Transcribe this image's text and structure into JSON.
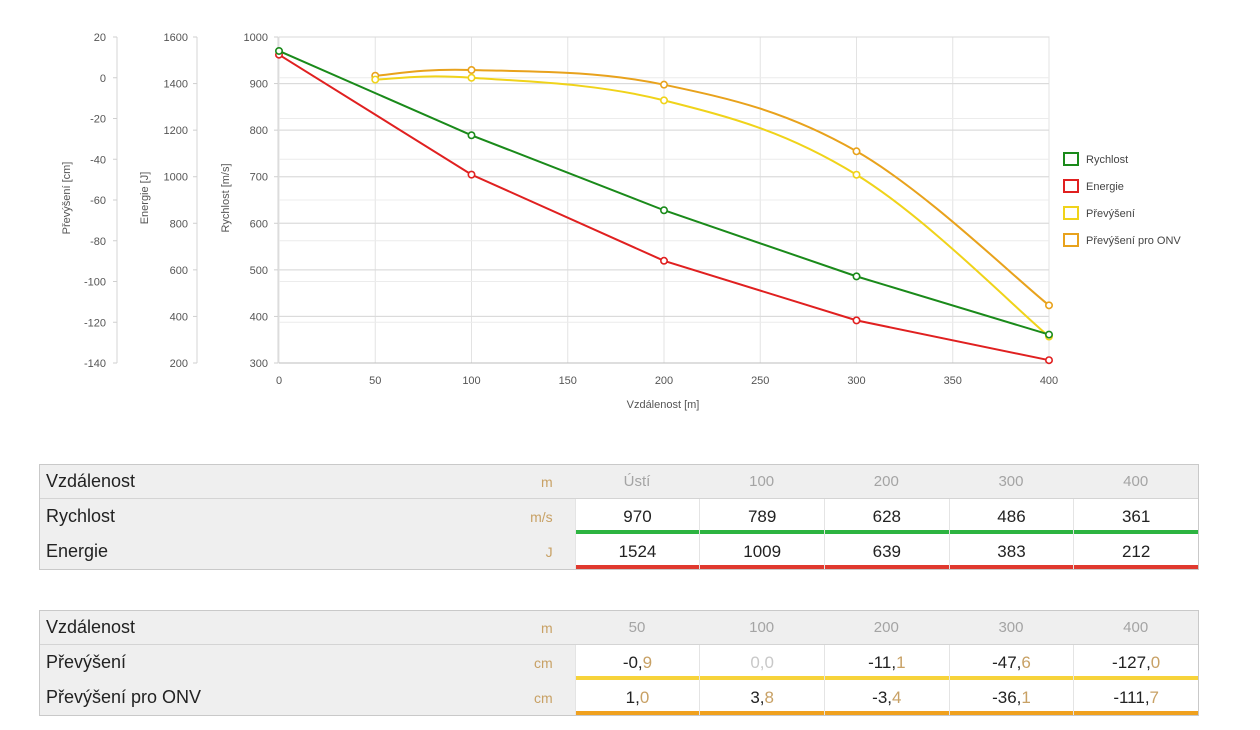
{
  "chart_data": {
    "type": "line",
    "xlabel": "Vzdálenost [m]",
    "xlim": [
      0,
      400
    ],
    "x_ticks": [
      0,
      50,
      100,
      150,
      200,
      250,
      300,
      350,
      400
    ],
    "grid": true,
    "legend_position": "right",
    "axes": [
      {
        "id": "elev",
        "label": "Převýšení [cm]",
        "range": [
          -140,
          20
        ],
        "ticks": [
          20,
          0,
          -20,
          -40,
          -60,
          -80,
          -100,
          -120,
          -140
        ]
      },
      {
        "id": "energy",
        "label": "Energie [J]",
        "range": [
          200,
          1600
        ],
        "ticks": [
          1600,
          1400,
          1200,
          1000,
          800,
          600,
          400,
          200
        ]
      },
      {
        "id": "speed",
        "label": "Rychlost [m/s]",
        "range": [
          300,
          1000
        ],
        "ticks": [
          1000,
          900,
          800,
          700,
          600,
          500,
          400,
          300
        ]
      }
    ],
    "series": [
      {
        "name": "Rychlost",
        "axis": "speed",
        "color": "#1a8a1a",
        "smooth": false,
        "x": [
          0,
          100,
          200,
          300,
          400
        ],
        "y": [
          970,
          789,
          628,
          486,
          361
        ]
      },
      {
        "name": "Energie",
        "axis": "energy",
        "color": "#e02020",
        "smooth": false,
        "x": [
          0,
          100,
          200,
          300,
          400
        ],
        "y": [
          1524,
          1009,
          639,
          383,
          212
        ]
      },
      {
        "name": "Převýšení",
        "axis": "elev",
        "color": "#f0d31a",
        "smooth": true,
        "x": [
          50,
          100,
          200,
          300,
          400
        ],
        "y": [
          -0.9,
          0.0,
          -11.1,
          -47.6,
          -127.0
        ]
      },
      {
        "name": "Převýšení pro ONV",
        "axis": "elev",
        "color": "#e8a21c",
        "smooth": true,
        "x": [
          50,
          100,
          200,
          300,
          400
        ],
        "y": [
          1.0,
          3.8,
          -3.4,
          -36.1,
          -111.7
        ]
      }
    ]
  },
  "table1": {
    "header": {
      "label": "Vzdálenost",
      "unit": "m",
      "values": [
        "Ústí",
        "100",
        "200",
        "300",
        "400"
      ]
    },
    "rows": [
      {
        "label": "Rychlost",
        "unit": "m/s",
        "color": "#2db441",
        "values": [
          {
            "int": "970",
            "frac": ""
          },
          {
            "int": "789",
            "frac": ""
          },
          {
            "int": "628",
            "frac": ""
          },
          {
            "int": "486",
            "frac": ""
          },
          {
            "int": "361",
            "frac": ""
          }
        ]
      },
      {
        "label": "Energie",
        "unit": "J",
        "color": "#e0392e",
        "values": [
          {
            "int": "1524",
            "frac": ""
          },
          {
            "int": "1009",
            "frac": ""
          },
          {
            "int": "639",
            "frac": ""
          },
          {
            "int": "383",
            "frac": ""
          },
          {
            "int": "212",
            "frac": ""
          }
        ]
      }
    ]
  },
  "table2": {
    "header": {
      "label": "Vzdálenost",
      "unit": "m",
      "values": [
        "50",
        "100",
        "200",
        "300",
        "400"
      ]
    },
    "rows": [
      {
        "label": "Převýšení",
        "unit": "cm",
        "color": "#f7d33a",
        "values": [
          {
            "int": "-0,",
            "frac": "9"
          },
          {
            "int": "0,",
            "frac": "0",
            "zero": true
          },
          {
            "int": "-11,",
            "frac": "1"
          },
          {
            "int": "-47,",
            "frac": "6"
          },
          {
            "int": "-127,",
            "frac": "0"
          }
        ]
      },
      {
        "label": "Převýšení pro ONV",
        "unit": "cm",
        "color": "#f0a11e",
        "values": [
          {
            "int": "1,",
            "frac": "0"
          },
          {
            "int": "3,",
            "frac": "8"
          },
          {
            "int": "-3,",
            "frac": "4"
          },
          {
            "int": "-36,",
            "frac": "1"
          },
          {
            "int": "-111,",
            "frac": "7"
          }
        ]
      }
    ]
  }
}
